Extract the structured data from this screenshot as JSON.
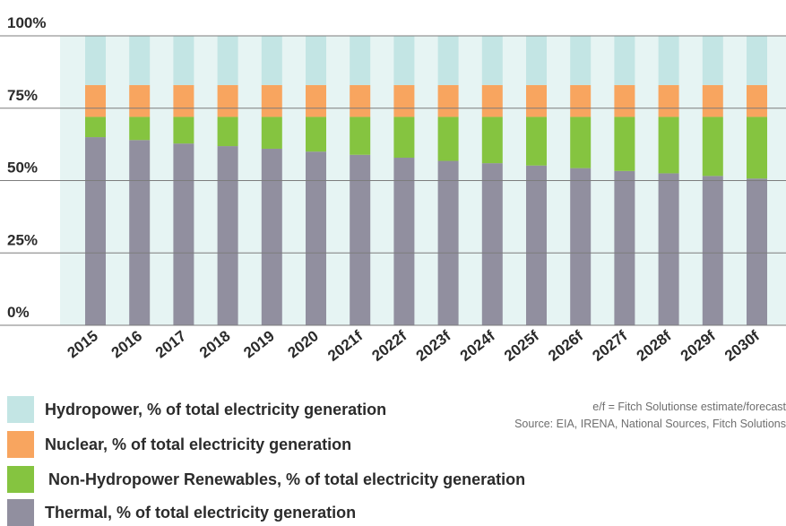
{
  "chart_data": {
    "type": "bar",
    "stacked": true,
    "categories": [
      "2015",
      "2016",
      "2017",
      "2018",
      "2019",
      "2020",
      "2021f",
      "2022f",
      "2023f",
      "2024f",
      "2025f",
      "2026f",
      "2027f",
      "2028f",
      "2029f",
      "2030f"
    ],
    "series": [
      {
        "name": "Thermal, % of total electricity generation",
        "color": "#918f9f",
        "values": [
          65,
          64,
          62.8,
          61.9,
          61,
          60,
          58.9,
          57.9,
          56.8,
          56,
          55.2,
          54.3,
          53.3,
          52.5,
          51.6,
          50.7
        ]
      },
      {
        "name": "Non-Hydropower Renewables, % of total electricity generation",
        "color": "#85c440",
        "values": [
          7,
          8,
          9.2,
          10.1,
          11,
          12,
          13.1,
          14.1,
          15.2,
          16,
          16.8,
          17.7,
          18.7,
          19.5,
          20.4,
          21.3
        ]
      },
      {
        "name": "Nuclear, % of total electricity generation",
        "color": "#f8a55f",
        "values": [
          11,
          11,
          11,
          11,
          11,
          11,
          11,
          11,
          11,
          11,
          11,
          11,
          11,
          11,
          11,
          11
        ]
      },
      {
        "name": "Hydropower, % of total electricity generation",
        "color": "#c3e5e4",
        "values": [
          17,
          17,
          17,
          17,
          17,
          17,
          17,
          17,
          17,
          17,
          17,
          17,
          17,
          17,
          17,
          17
        ]
      }
    ],
    "ylim": [
      0,
      100
    ],
    "yticks": [
      "0%",
      "25%",
      "50%",
      "75%",
      "100%"
    ],
    "grid": true,
    "plot_background": "#e6f4f3",
    "xlabel": "",
    "ylabel": ""
  },
  "legend": [
    {
      "label": "Hydropower, % of total electricity generation",
      "color": "#c3e5e4"
    },
    {
      "label": "Nuclear, % of total electricity generation",
      "color": "#f8a55f"
    },
    {
      "label": "Non-Hydropower Renewables, % of total electricity generation",
      "color": "#85c440"
    },
    {
      "label": "Thermal, % of total electricity generation",
      "color": "#918f9f"
    }
  ],
  "notes": {
    "estimate": "e/f = Fitch Solutionse estimate/forecast",
    "source": "Source: EIA, IRENA, National Sources, Fitch Solutions"
  }
}
